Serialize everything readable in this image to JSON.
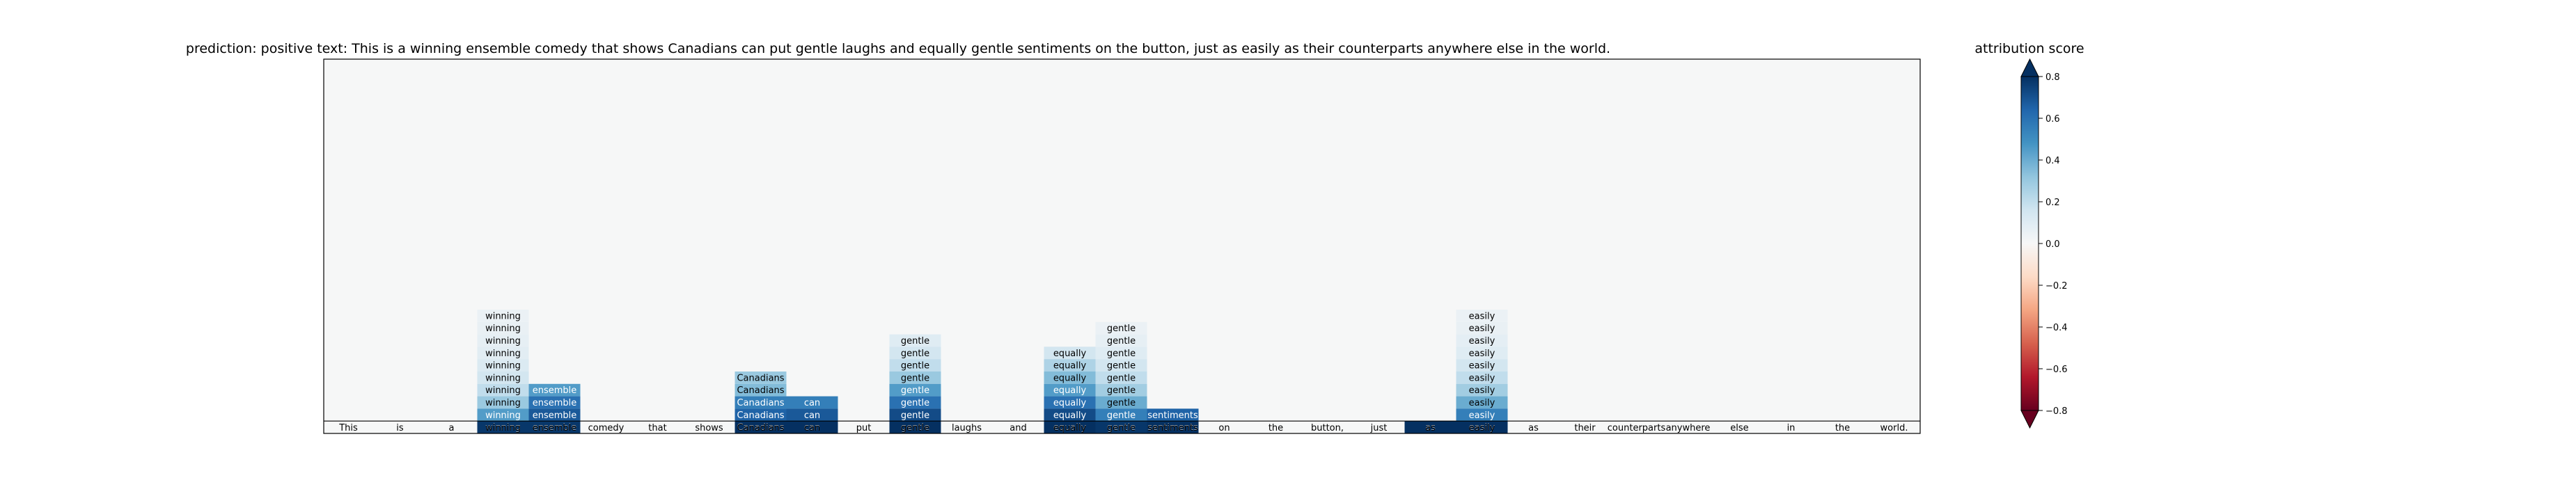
{
  "chart_data": {
    "type": "heatmap",
    "title": "prediction:  positive     text:  This is a winning ensemble comedy that shows Canadians can put gentle laughs and equally gentle sentiments on the button, just as easily as their counterparts anywhere else in the world.",
    "tokens": [
      "This",
      "is",
      "a",
      "winning",
      "ensemble",
      "comedy",
      "that",
      "shows",
      "Canadians",
      "can",
      "put",
      "gentle",
      "laughs",
      "and",
      "equally",
      "gentle",
      "sentiments",
      "on",
      "the",
      "button,",
      "just",
      "as",
      "easily",
      "as",
      "their",
      "counterparts",
      "anywhere",
      "else",
      "in",
      "the",
      "world."
    ],
    "layers": 10,
    "cells": [
      {
        "token_index": 3,
        "label": "winning",
        "scores": [
          0.05,
          0.06,
          0.07,
          0.09,
          0.12,
          0.15,
          0.2,
          0.3,
          0.45,
          0.78
        ]
      },
      {
        "token_index": 4,
        "label": "ensemble",
        "scores": [
          0.45,
          0.6,
          0.68,
          0.78
        ]
      },
      {
        "token_index": 8,
        "label": "Canadians",
        "scores": [
          0.3,
          0.35,
          0.55,
          0.65,
          0.8
        ]
      },
      {
        "token_index": 9,
        "label": "can",
        "scores": [
          0.55,
          0.68,
          0.8
        ]
      },
      {
        "token_index": 11,
        "label": "gentle",
        "scores": [
          0.1,
          0.15,
          0.2,
          0.3,
          0.45,
          0.6,
          0.72,
          0.8
        ]
      },
      {
        "token_index": 14,
        "label": "equally",
        "scores": [
          0.15,
          0.25,
          0.35,
          0.45,
          0.6,
          0.72,
          0.8
        ]
      },
      {
        "token_index": 15,
        "label": "gentle",
        "scores": [
          0.05,
          0.07,
          0.1,
          0.15,
          0.2,
          0.28,
          0.4,
          0.55,
          0.78
        ]
      },
      {
        "token_index": 16,
        "label": "sentiments",
        "scores": [
          0.65,
          0.8
        ]
      },
      {
        "token_index": 21,
        "label": "as",
        "scores": [
          0.85
        ]
      },
      {
        "token_index": 22,
        "label": "easily",
        "scores": [
          0.05,
          0.06,
          0.08,
          0.1,
          0.15,
          0.2,
          0.28,
          0.4,
          0.55,
          0.8
        ]
      }
    ],
    "colorbar": {
      "label": "attribution score",
      "colormap": "RdBu",
      "vmin": -0.8,
      "vmax": 0.8,
      "ticks": [
        -0.8,
        -0.6,
        -0.4,
        -0.2,
        0.0,
        0.2,
        0.4,
        0.6,
        0.8
      ],
      "tick_labels": [
        "−0.8",
        "−0.6",
        "−0.4",
        "−0.2",
        "0.0",
        "0.2",
        "0.4",
        "0.6",
        "0.8"
      ],
      "extend": "both"
    },
    "background_color": "#f6f7f7"
  }
}
